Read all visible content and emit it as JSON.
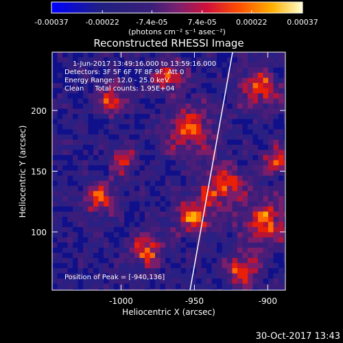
{
  "chart_data": {
    "type": "heatmap",
    "title": "Reconstructed RHESSI Image",
    "xlabel": "Heliocentric X (arcsec)",
    "ylabel": "Heliocentric Y (arcsec)",
    "xlim": [
      -1047,
      -888
    ],
    "ylim": [
      52,
      248
    ],
    "x_ticks": [
      -1000,
      -950,
      -900
    ],
    "x_tick_labels": [
      "-1000",
      "-950",
      "-900"
    ],
    "y_ticks": [
      100,
      150,
      200
    ],
    "y_tick_labels": [
      "100",
      "150",
      "200"
    ],
    "colorbar": {
      "range": [
        -0.00037,
        0.00037
      ],
      "ticks": [
        -0.00037,
        -0.00022,
        -7.4e-05,
        7.4e-05,
        0.00022,
        0.00037
      ],
      "tick_labels": [
        "-0.00037",
        "-0.00022",
        "-7.4e-05",
        "7.4e-05",
        "0.00022",
        "0.00037"
      ],
      "unit_label": "(photons cm⁻² s⁻¹ asec⁻²)"
    },
    "annotations": [
      "1-Jun-2017 13:49:16.000 to 13:59:16.000",
      "Detectors: 3F 5F 6F 7F 8F 9F, Att 0",
      "Energy Range: 12.0 - 25.0 keV",
      "Clean     Total counts: 1.95E+04"
    ],
    "peak_label": "Position of Peak = [-940,136]",
    "peak": {
      "x": -940,
      "y": 136
    },
    "limb_line": [
      [
        -953,
        52
      ],
      [
        -924,
        248
      ]
    ],
    "grid": false
  },
  "timestamp": "30-Oct-2017 13:43",
  "colors": {
    "background": "#000000",
    "foreground": "#ffffff",
    "colormap": [
      "#0000ff",
      "#3030a0",
      "#502a90",
      "#a0206a",
      "#ff1a00",
      "#ff9600",
      "#ffff90",
      "#ffffff"
    ]
  }
}
